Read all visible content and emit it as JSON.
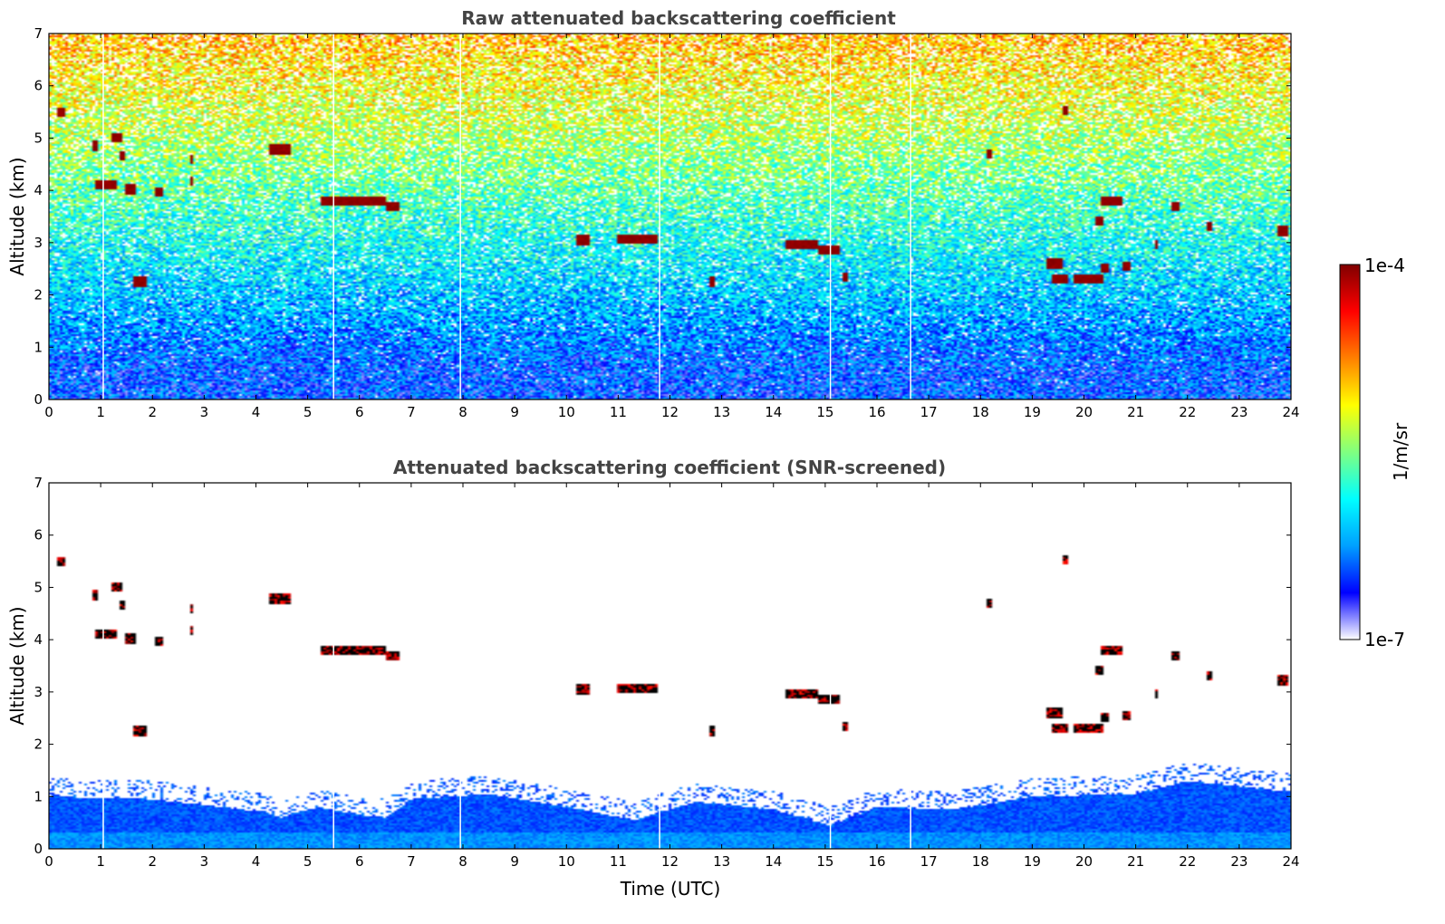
{
  "chart_data": [
    {
      "type": "heatmap",
      "title": "Raw attenuated backscattering coefficient",
      "xlabel": "",
      "ylabel": "Altitude (km)",
      "xlim": [
        0,
        24
      ],
      "ylim": [
        0,
        7
      ],
      "x_ticks": [
        "0",
        "1",
        "2",
        "3",
        "4",
        "5",
        "6",
        "7",
        "8",
        "9",
        "10",
        "11",
        "12",
        "13",
        "14",
        "15",
        "16",
        "17",
        "18",
        "19",
        "20",
        "21",
        "22",
        "23",
        "24"
      ],
      "y_ticks": [
        "0",
        "1",
        "2",
        "3",
        "4",
        "5",
        "6",
        "7"
      ],
      "screened": false,
      "data_gaps_utc": [
        1.05,
        5.5,
        7.95,
        11.8,
        15.1,
        16.65
      ],
      "cloud_layers": [
        {
          "t0": 0.15,
          "t1": 0.3,
          "alt": 5.5
        },
        {
          "t0": 0.85,
          "t1": 0.95,
          "alt": 4.85
        },
        {
          "t0": 1.2,
          "t1": 1.4,
          "alt": 5.0
        },
        {
          "t0": 1.35,
          "t1": 1.45,
          "alt": 4.65
        },
        {
          "t0": 0.9,
          "t1": 1.3,
          "alt": 4.1
        },
        {
          "t0": 1.45,
          "t1": 1.7,
          "alt": 4.02
        },
        {
          "t0": 2.05,
          "t1": 2.2,
          "alt": 3.97
        },
        {
          "t0": 1.65,
          "t1": 1.9,
          "alt": 2.25
        },
        {
          "t0": 2.75,
          "t1": 2.8,
          "alt": 4.6
        },
        {
          "t0": 2.75,
          "t1": 2.8,
          "alt": 4.17
        },
        {
          "t0": 4.25,
          "t1": 4.7,
          "alt": 4.78
        },
        {
          "t0": 5.25,
          "t1": 6.5,
          "alt": 3.8
        },
        {
          "t0": 6.5,
          "t1": 6.75,
          "alt": 3.7
        },
        {
          "t0": 10.2,
          "t1": 10.45,
          "alt": 3.05
        },
        {
          "t0": 11.0,
          "t1": 11.75,
          "alt": 3.08
        },
        {
          "t0": 12.75,
          "t1": 12.85,
          "alt": 2.25
        },
        {
          "t0": 14.25,
          "t1": 14.85,
          "alt": 2.95
        },
        {
          "t0": 14.85,
          "t1": 15.3,
          "alt": 2.85
        },
        {
          "t0": 15.35,
          "t1": 15.45,
          "alt": 2.35
        },
        {
          "t0": 18.1,
          "t1": 18.2,
          "alt": 4.7
        },
        {
          "t0": 19.25,
          "t1": 19.6,
          "alt": 2.6
        },
        {
          "t0": 19.4,
          "t1": 19.7,
          "alt": 2.3
        },
        {
          "t0": 19.6,
          "t1": 19.7,
          "alt": 5.52
        },
        {
          "t0": 19.8,
          "t1": 20.4,
          "alt": 2.3
        },
        {
          "t0": 20.2,
          "t1": 20.4,
          "alt": 3.4
        },
        {
          "t0": 20.3,
          "t1": 20.5,
          "alt": 2.5
        },
        {
          "t0": 20.35,
          "t1": 20.75,
          "alt": 3.8
        },
        {
          "t0": 20.75,
          "t1": 20.9,
          "alt": 2.55
        },
        {
          "t0": 21.35,
          "t1": 21.45,
          "alt": 2.95
        },
        {
          "t0": 21.7,
          "t1": 21.85,
          "alt": 3.7
        },
        {
          "t0": 22.35,
          "t1": 22.5,
          "alt": 3.32
        },
        {
          "t0": 23.75,
          "t1": 23.95,
          "alt": 3.22
        }
      ]
    },
    {
      "type": "heatmap",
      "title": "Attenuated backscattering coefficient (SNR-screened)",
      "xlabel": "Time (UTC)",
      "ylabel": "Altitude (km)",
      "xlim": [
        0,
        24
      ],
      "ylim": [
        0,
        7
      ],
      "x_ticks": [
        "0",
        "1",
        "2",
        "3",
        "4",
        "5",
        "6",
        "7",
        "8",
        "9",
        "10",
        "11",
        "12",
        "13",
        "14",
        "15",
        "16",
        "17",
        "18",
        "19",
        "20",
        "21",
        "22",
        "23",
        "24"
      ],
      "y_ticks": [
        "0",
        "1",
        "2",
        "3",
        "4",
        "5",
        "6",
        "7"
      ],
      "screened": true,
      "data_gaps_utc": [
        1.05,
        5.5,
        7.95,
        11.8,
        15.1,
        16.65
      ],
      "boundary_layer_top_km": [
        {
          "t": 0,
          "alt": 1.0
        },
        {
          "t": 2,
          "alt": 0.95
        },
        {
          "t": 4.2,
          "alt": 0.7
        },
        {
          "t": 4.5,
          "alt": 0.6
        },
        {
          "t": 5.2,
          "alt": 0.8
        },
        {
          "t": 6,
          "alt": 0.65
        },
        {
          "t": 6.5,
          "alt": 0.6
        },
        {
          "t": 7,
          "alt": 0.95
        },
        {
          "t": 8.5,
          "alt": 1.05
        },
        {
          "t": 10.3,
          "alt": 0.75
        },
        {
          "t": 11.3,
          "alt": 0.55
        },
        {
          "t": 12.5,
          "alt": 0.9
        },
        {
          "t": 14,
          "alt": 0.75
        },
        {
          "t": 15.1,
          "alt": 0.45
        },
        {
          "t": 16,
          "alt": 0.8
        },
        {
          "t": 17.5,
          "alt": 0.75
        },
        {
          "t": 19,
          "alt": 1.0
        },
        {
          "t": 21,
          "alt": 1.05
        },
        {
          "t": 22,
          "alt": 1.3
        },
        {
          "t": 23.9,
          "alt": 1.1
        }
      ]
    }
  ],
  "colorbar": {
    "label": "1/m/sr",
    "max_label": "1e-4",
    "min_label": "1e-7",
    "colormap": [
      "#ffffff",
      "#0000ff",
      "#00a0ff",
      "#00ffff",
      "#80ff80",
      "#ffff00",
      "#ff8000",
      "#ff0000",
      "#800000"
    ],
    "scale": "log",
    "range": [
      1e-07,
      0.0001
    ]
  }
}
